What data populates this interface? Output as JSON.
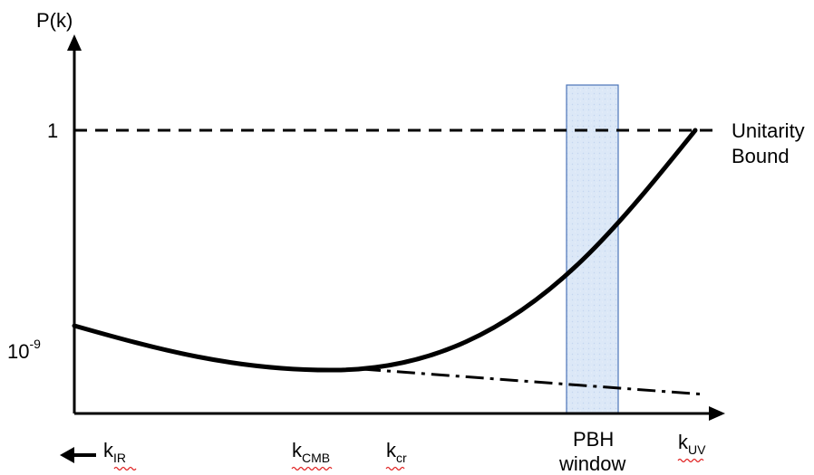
{
  "y_axis_label": "P(k)",
  "y_ticks": [
    {
      "base": "1",
      "sup": ""
    },
    {
      "base": "10",
      "sup": "-9"
    }
  ],
  "bound_label": [
    "Unitarity",
    "Bound"
  ],
  "window_label": [
    "PBH",
    "window"
  ],
  "x_labels": [
    {
      "base": "k",
      "sub": "IR",
      "arrow": true
    },
    {
      "base": "k",
      "sub": "CMB",
      "arrow": false
    },
    {
      "base": "k",
      "sub": "cr",
      "arrow": false
    },
    {
      "base": "k",
      "sub": "UV",
      "arrow": false
    }
  ],
  "colors": {
    "curve": "#000000",
    "window_fill": "#dce8f7",
    "window_stroke": "#4a73b8",
    "spellcheck": "#e02020"
  }
}
